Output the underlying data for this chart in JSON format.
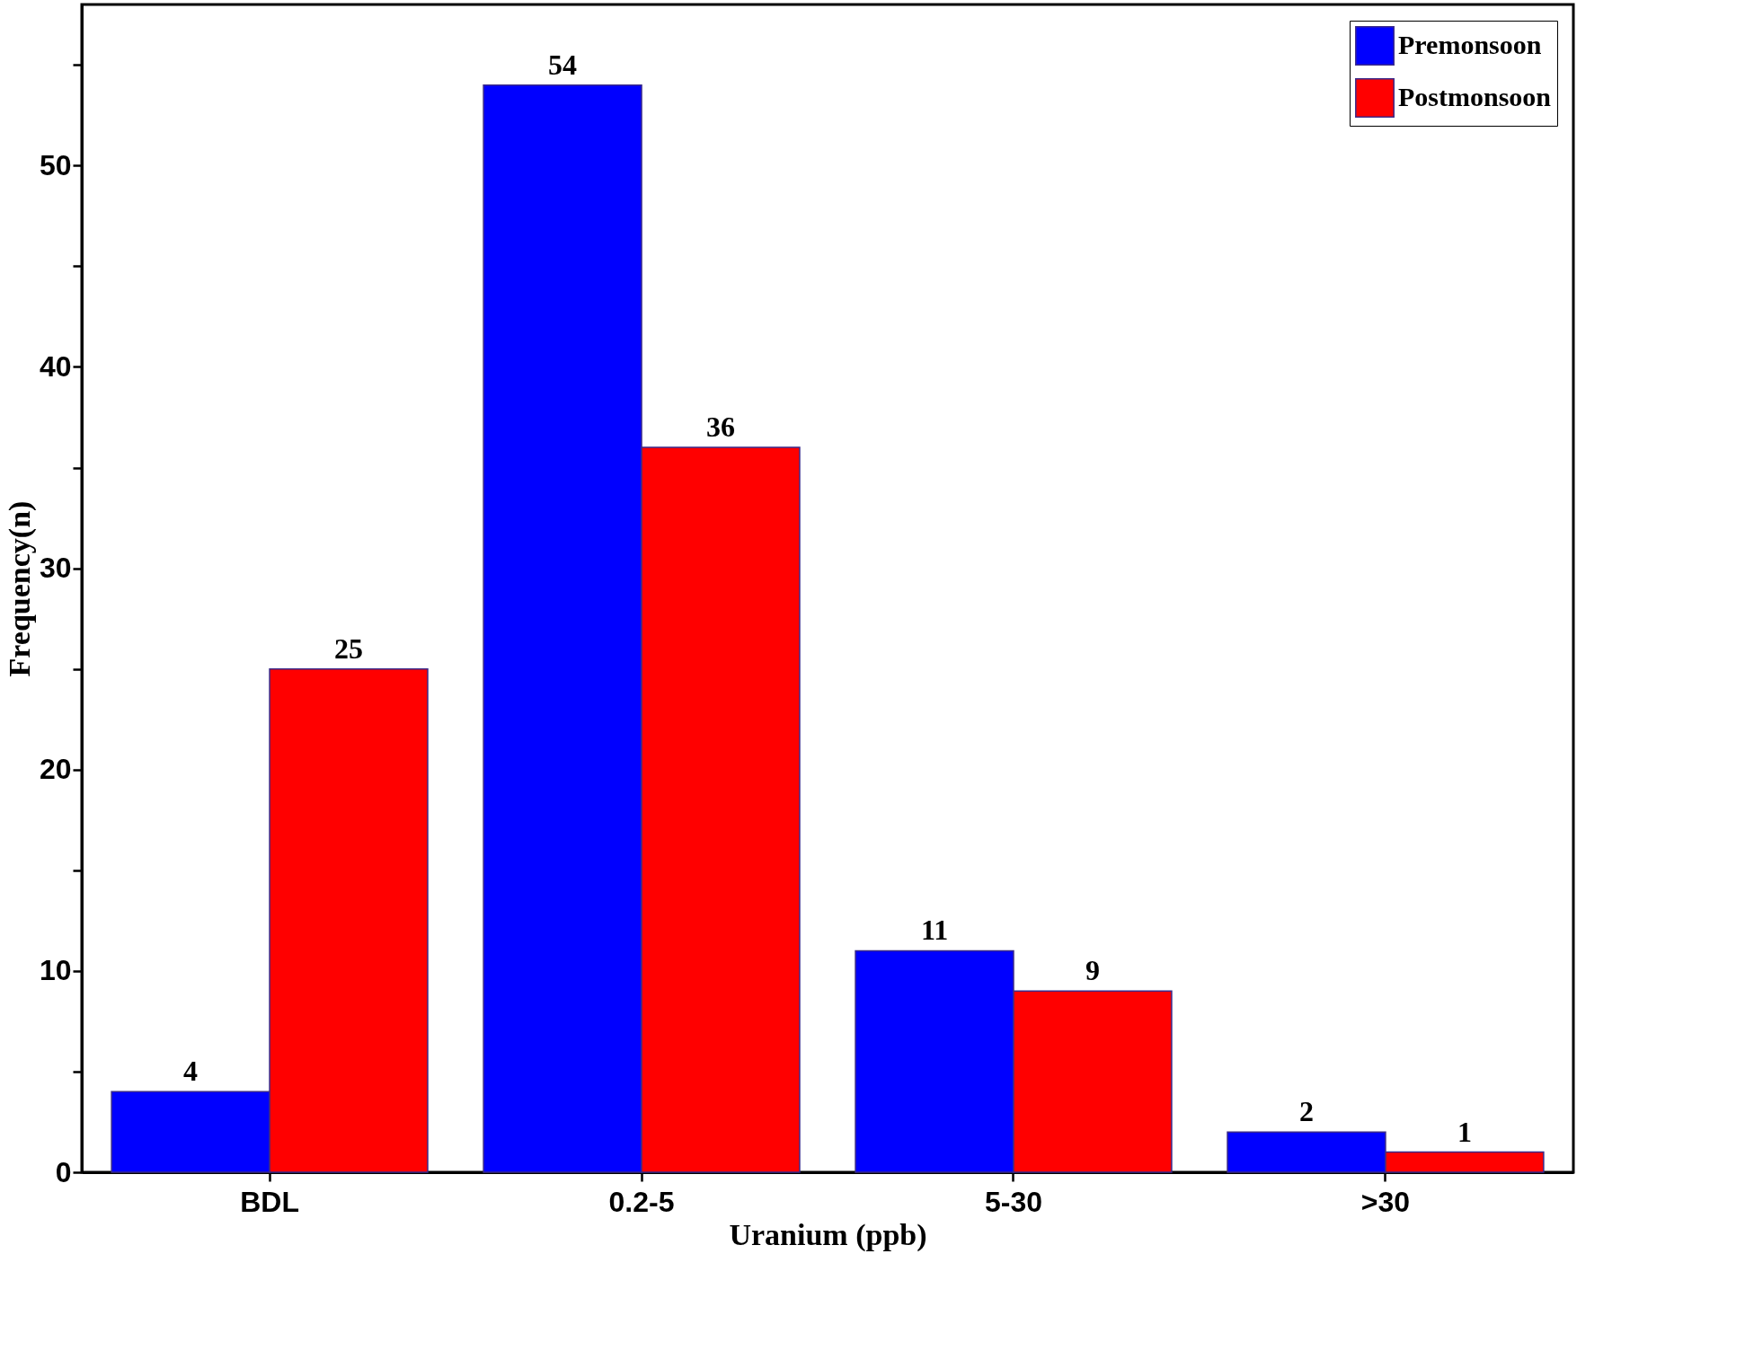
{
  "chart_data": {
    "type": "bar",
    "xlabel": "Uranium (ppb)",
    "ylabel": "Frequency(n)",
    "categories": [
      "BDL",
      "0.2-5",
      "5-30",
      ">30"
    ],
    "series": [
      {
        "name": "Premonsoon",
        "color": "#0000ff",
        "values": [
          4,
          54,
          11,
          2
        ]
      },
      {
        "name": "Postmonsoon",
        "color": "#ff0000",
        "values": [
          25,
          36,
          9,
          1
        ]
      }
    ],
    "ylim": [
      0,
      58
    ],
    "yticks": [
      0,
      {
        "value": 5,
        "label": null
      },
      10,
      {
        "value": 15,
        "label": null
      },
      20,
      {
        "value": 25,
        "label": null
      },
      30,
      {
        "value": 35,
        "label": null
      },
      40,
      {
        "value": 45,
        "label": null
      },
      50,
      {
        "value": 55,
        "label": null
      }
    ],
    "data_labels": true,
    "legend": "top right",
    "grid": false
  }
}
